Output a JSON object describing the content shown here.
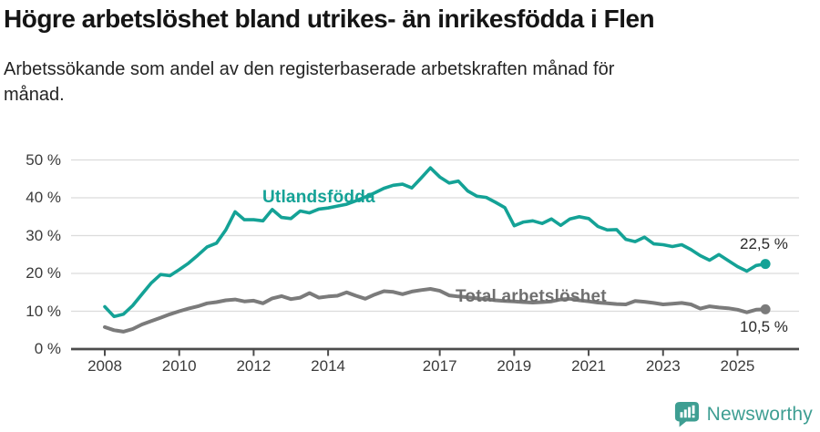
{
  "chart_data": {
    "type": "line",
    "title": "Högre arbetslöshet bland utrikes- än inrikesfödda i Flen",
    "subtitle": "Arbetssökande som andel av den registerbaserade arbetskraften månad för månad.",
    "xlabel": "",
    "ylabel": "",
    "ylim": [
      0,
      50
    ],
    "xlim_years": [
      2007.3,
      2026.6
    ],
    "grid": "horizontal",
    "legend_position": "inline-on-chart",
    "y_ticks": [
      0,
      10,
      20,
      30,
      40,
      50
    ],
    "y_tick_suffix": " %",
    "x_ticks": [
      2008,
      2010,
      2012,
      2014,
      2017,
      2019,
      2021,
      2023,
      2025
    ],
    "series": [
      {
        "name": "Utlandsfödda",
        "color": "#14a296",
        "end_label": "22,5 %",
        "end_value": 22.5,
        "x_start": 2008.0,
        "x_step": 0.25,
        "values": [
          11.2,
          8.6,
          9.2,
          11.5,
          14.5,
          17.5,
          19.7,
          19.4,
          21.0,
          22.7,
          24.8,
          27.0,
          28.0,
          31.5,
          36.3,
          34.2,
          34.2,
          33.9,
          36.9,
          34.8,
          34.5,
          36.5,
          36.0,
          37.0,
          37.3,
          37.8,
          38.3,
          39.2,
          40.2,
          41.3,
          42.5,
          43.3,
          43.6,
          42.6,
          45.2,
          47.9,
          45.5,
          43.9,
          44.4,
          41.8,
          40.4,
          40.1,
          38.8,
          37.4,
          32.6,
          33.6,
          33.9,
          33.2,
          34.4,
          32.7,
          34.4,
          35.0,
          34.5,
          32.4,
          31.5,
          31.6,
          29.0,
          28.4,
          29.6,
          27.8,
          27.6,
          27.1,
          27.6,
          26.3,
          24.7,
          23.5,
          25.0,
          23.4,
          21.8,
          20.6,
          22.1,
          22.5
        ]
      },
      {
        "name": "Total arbetslöshet",
        "color": "#7b7b7b",
        "end_label": "10,5 %",
        "end_value": 10.5,
        "x_start": 2008.0,
        "x_step": 0.25,
        "values": [
          5.8,
          5.0,
          4.6,
          5.3,
          6.5,
          7.4,
          8.3,
          9.2,
          10.0,
          10.7,
          11.3,
          12.1,
          12.4,
          12.9,
          13.1,
          12.6,
          12.8,
          12.1,
          13.4,
          14.0,
          13.2,
          13.6,
          14.8,
          13.6,
          13.9,
          14.1,
          15.0,
          14.1,
          13.3,
          14.4,
          15.3,
          15.1,
          14.5,
          15.2,
          15.6,
          15.9,
          15.4,
          14.2,
          13.9,
          13.7,
          13.4,
          13.2,
          12.9,
          12.7,
          12.6,
          12.4,
          12.3,
          12.4,
          12.6,
          13.1,
          13.3,
          12.9,
          12.6,
          12.3,
          12.1,
          11.9,
          11.8,
          12.7,
          12.5,
          12.2,
          11.8,
          12.0,
          12.2,
          11.8,
          10.7,
          11.3,
          11.0,
          10.8,
          10.4,
          9.7,
          10.4,
          10.5
        ]
      }
    ]
  },
  "colors": {
    "accent_teal": "#14a296",
    "line_gray": "#7b7b7b",
    "grid": "#dcdcdc",
    "axis": "#4c4c4c",
    "text_dark": "#151515",
    "logo_teal": "#3e9e92"
  },
  "footer": {
    "brand": "Newsworthy"
  }
}
